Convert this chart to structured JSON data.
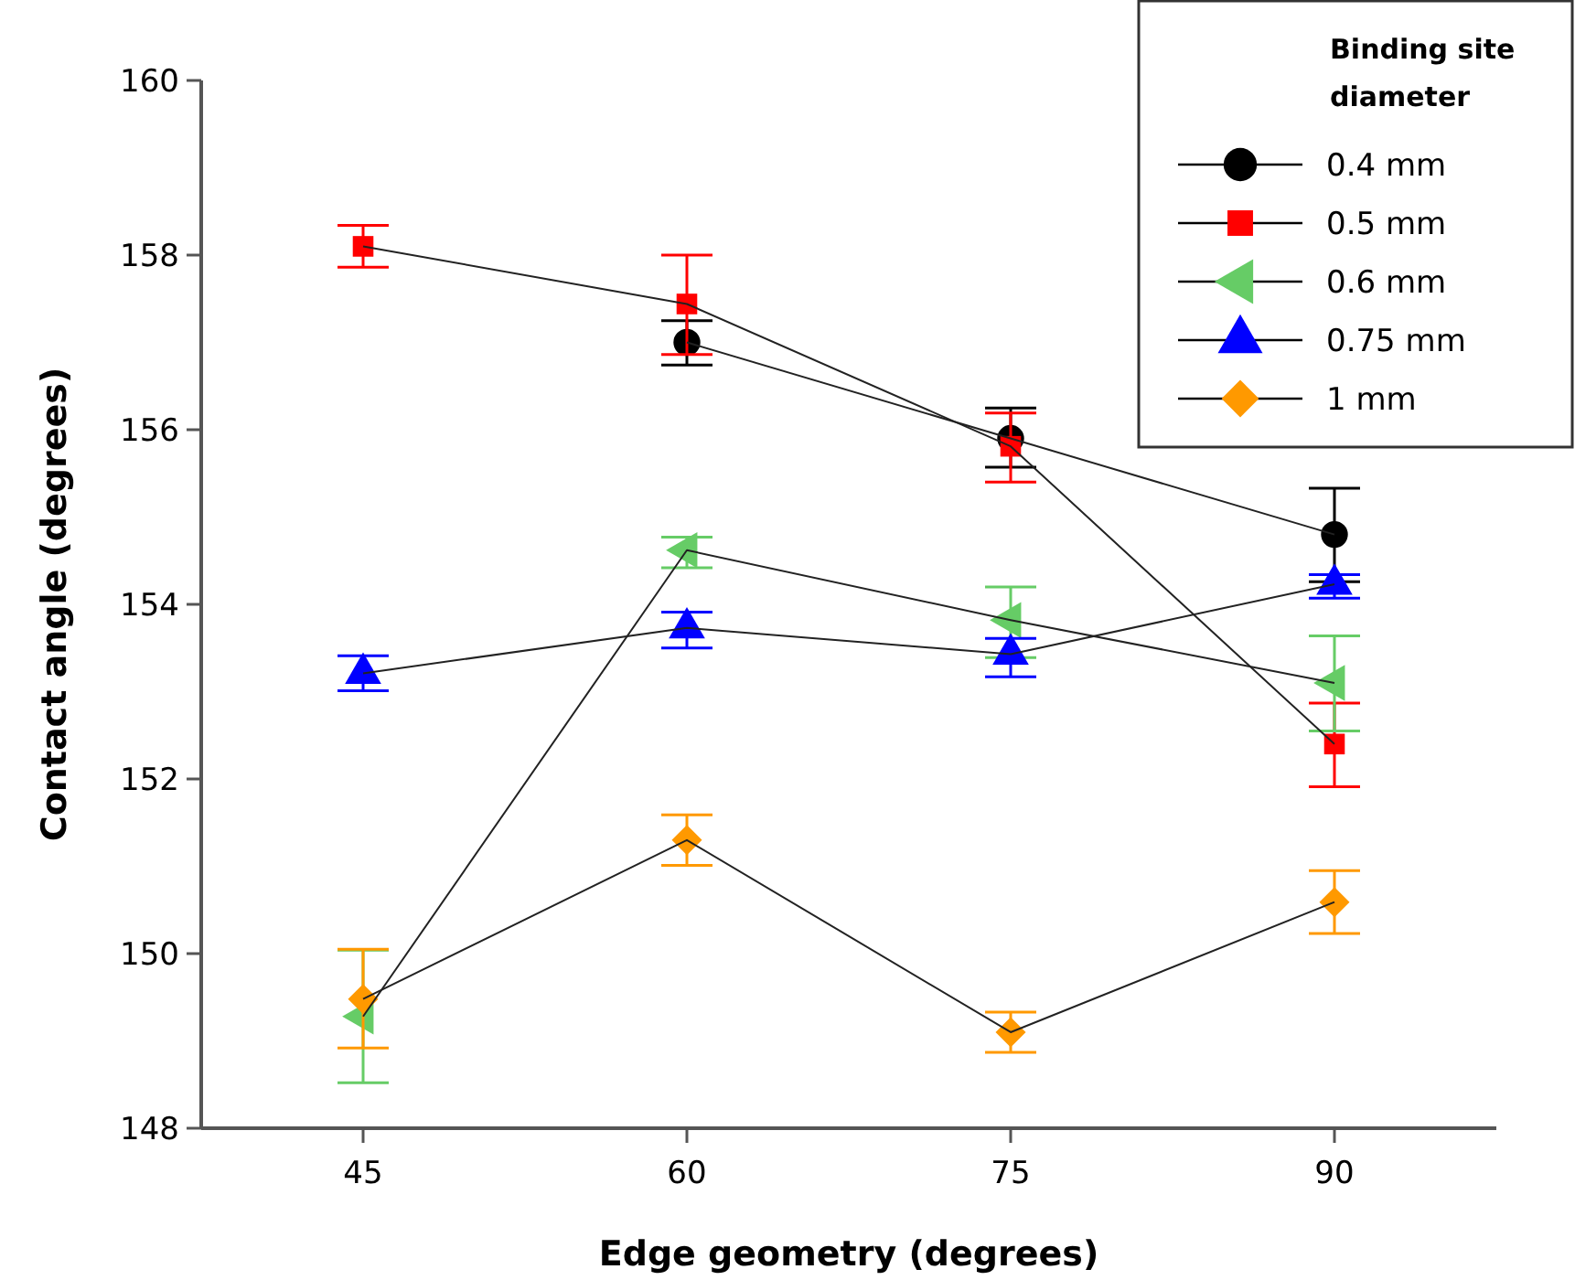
{
  "chart_data": {
    "type": "line",
    "xlabel": "Edge geometry (degrees)",
    "ylabel": "Contact angle (degrees)",
    "legend_title": "Binding site diameter",
    "legend": "top right",
    "grid": false,
    "x": [
      45,
      60,
      75,
      90
    ],
    "xlim": [
      37.5,
      97.5
    ],
    "xticks": [
      45,
      60,
      75,
      90
    ],
    "ylim": [
      148,
      160
    ],
    "yticks": [
      148,
      150,
      152,
      154,
      156,
      158,
      160
    ],
    "series": [
      {
        "name": "0.4 mm",
        "color": "#000000",
        "marker": "circle",
        "values": [
          null,
          157.0,
          155.9,
          154.8
        ],
        "errors": [
          null,
          [
            156.74,
            157.25
          ],
          [
            155.57,
            156.25
          ],
          [
            154.26,
            155.33
          ]
        ]
      },
      {
        "name": "0.5 mm",
        "color": "#ff0000",
        "marker": "square",
        "values": [
          158.1,
          157.44,
          155.81,
          152.4
        ],
        "errors": [
          [
            157.86,
            158.34
          ],
          [
            156.86,
            158.0
          ],
          [
            155.4,
            156.19
          ],
          [
            151.91,
            152.87
          ]
        ]
      },
      {
        "name": "0.6 mm",
        "color": "#66cc66",
        "marker": "triangle-left",
        "values": [
          149.28,
          154.62,
          153.82,
          153.1
        ],
        "errors": [
          [
            148.52,
            150.04
          ],
          [
            154.42,
            154.77
          ],
          [
            153.39,
            154.2
          ],
          [
            152.55,
            153.64
          ]
        ]
      },
      {
        "name": "0.75 mm",
        "color": "#0000ff",
        "marker": "triangle",
        "values": [
          153.21,
          153.73,
          153.43,
          154.23
        ],
        "errors": [
          [
            153.01,
            153.41
          ],
          [
            153.5,
            153.91
          ],
          [
            153.17,
            153.61
          ],
          [
            154.07,
            154.34
          ]
        ]
      },
      {
        "name": "1 mm",
        "color": "#ff9900",
        "marker": "diamond",
        "values": [
          149.48,
          151.3,
          149.1,
          150.59
        ],
        "errors": [
          [
            148.92,
            150.05
          ],
          [
            151.01,
            151.59
          ],
          [
            148.87,
            149.33
          ],
          [
            150.23,
            150.95
          ]
        ]
      }
    ]
  }
}
